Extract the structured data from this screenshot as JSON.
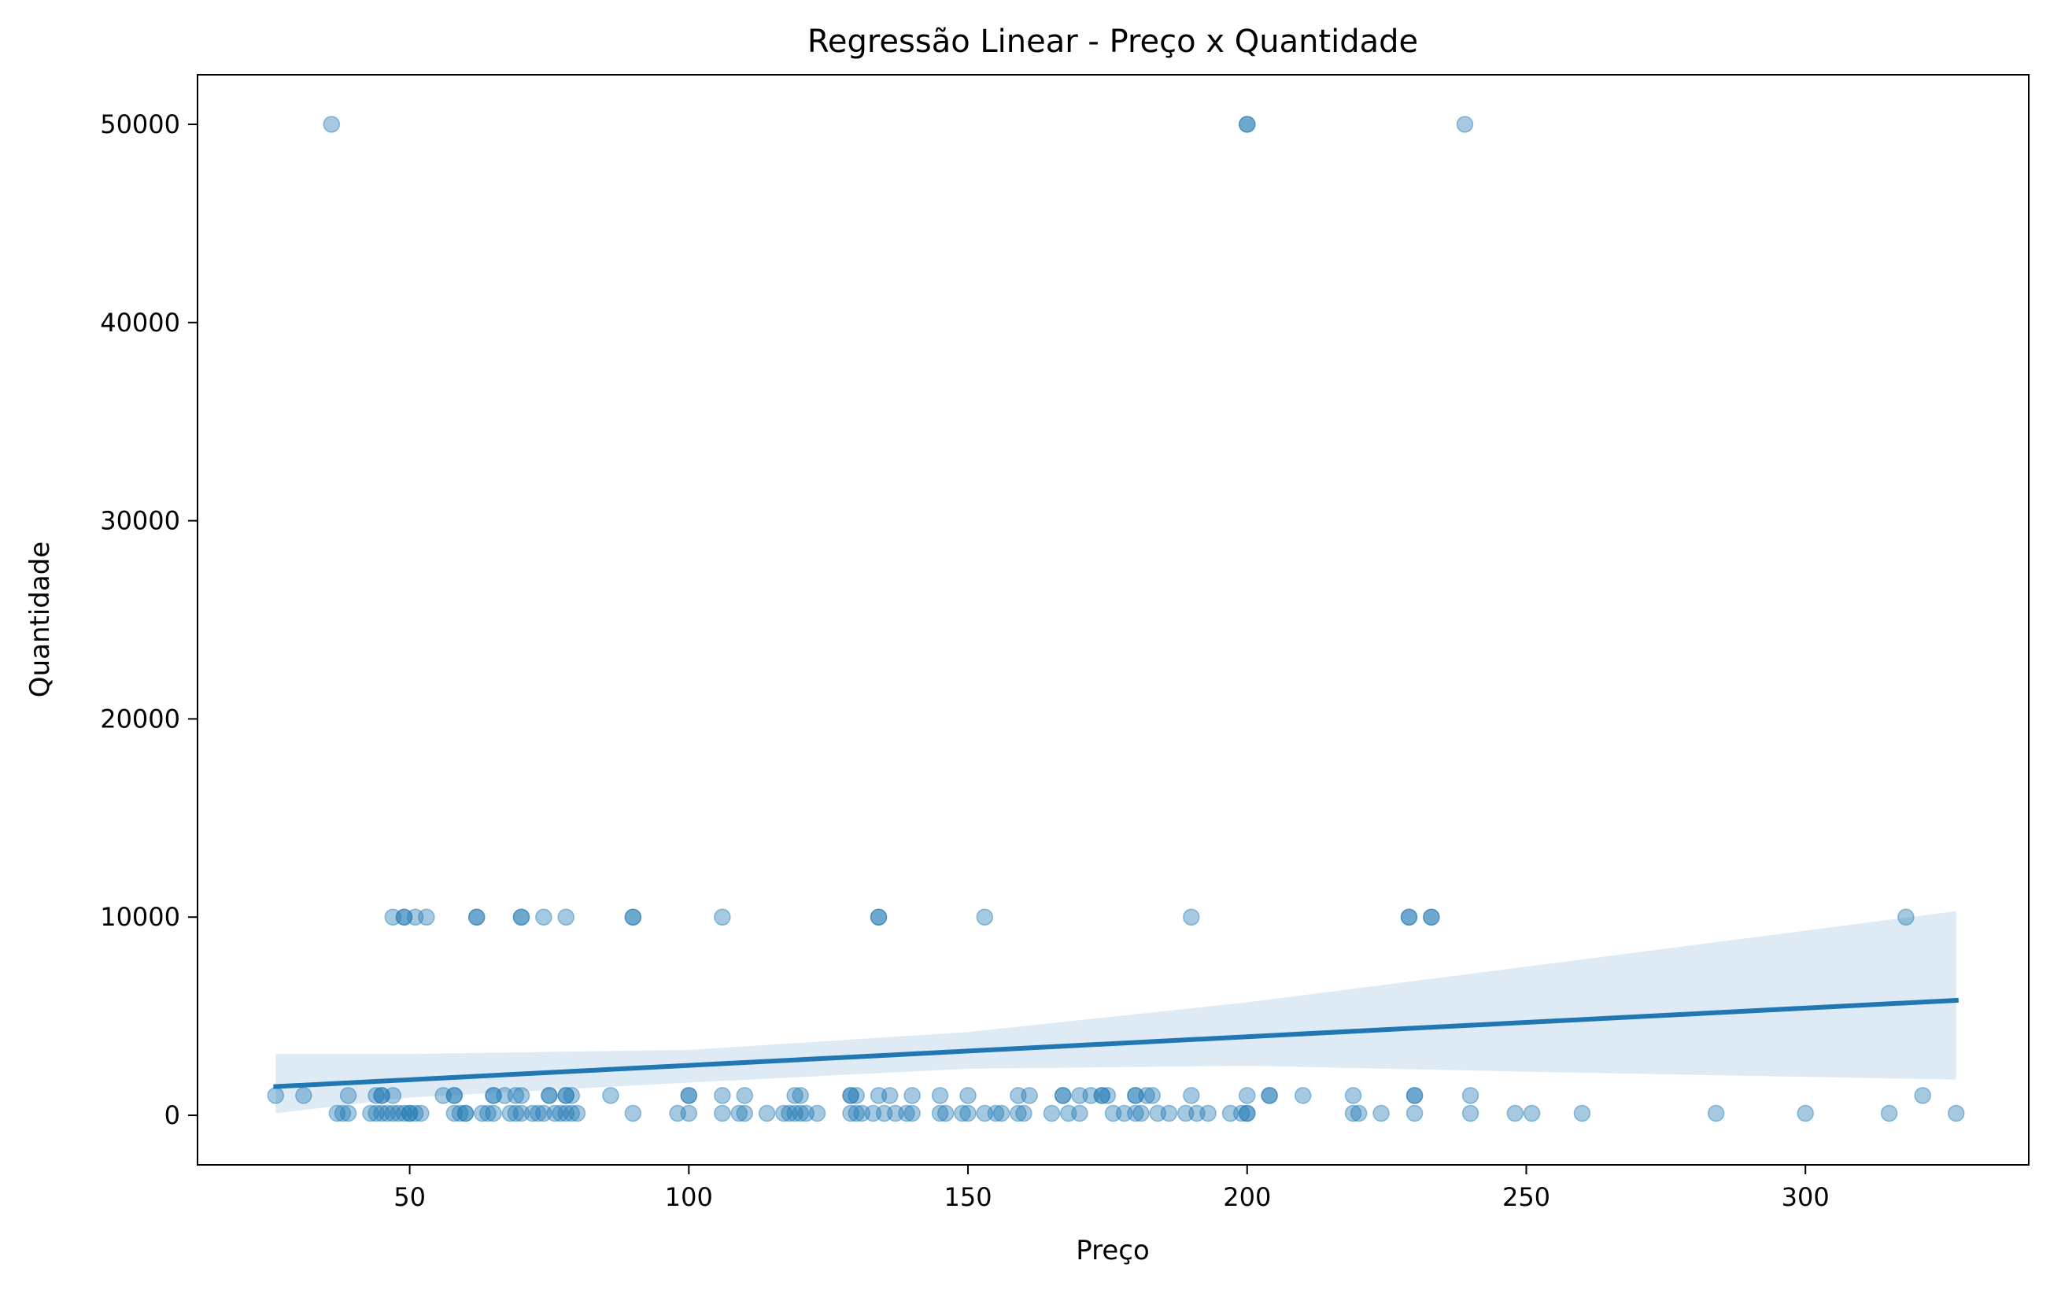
{
  "chart_data": {
    "type": "scatter",
    "title": "Regressão Linear - Preço x Quantidade",
    "xlabel": "Preço",
    "ylabel": "Quantidade",
    "xlim": [
      12,
      340
    ],
    "ylim": [
      -2500,
      52500
    ],
    "xticks": [
      50,
      100,
      150,
      200,
      250,
      300
    ],
    "yticks": [
      0,
      10000,
      20000,
      30000,
      40000,
      50000
    ],
    "grid": false,
    "colors": {
      "points": "#1f77b4",
      "line": "#1f77b4",
      "band": "#1f77b4"
    },
    "series": [
      {
        "points": [
          [
            36,
            50000
          ],
          [
            200,
            50000
          ],
          [
            200,
            50000
          ],
          [
            239,
            50000
          ],
          [
            47,
            10000
          ],
          [
            49,
            10000
          ],
          [
            49,
            10000
          ],
          [
            51,
            10000
          ],
          [
            53,
            10000
          ],
          [
            62,
            10000
          ],
          [
            62,
            10000
          ],
          [
            70,
            10000
          ],
          [
            70,
            10000
          ],
          [
            74,
            10000
          ],
          [
            78,
            10000
          ],
          [
            90,
            10000
          ],
          [
            90,
            10000
          ],
          [
            106,
            10000
          ],
          [
            134,
            10000
          ],
          [
            134,
            10000
          ],
          [
            153,
            10000
          ],
          [
            190,
            10000
          ],
          [
            229,
            10000
          ],
          [
            229,
            10000
          ],
          [
            233,
            10000
          ],
          [
            233,
            10000
          ],
          [
            318,
            10000
          ],
          [
            26,
            1000
          ],
          [
            31,
            1000
          ],
          [
            39,
            1000
          ],
          [
            44,
            1000
          ],
          [
            45,
            1000
          ],
          [
            45,
            1000
          ],
          [
            47,
            1000
          ],
          [
            56,
            1000
          ],
          [
            58,
            1000
          ],
          [
            58,
            1000
          ],
          [
            65,
            1000
          ],
          [
            65,
            1000
          ],
          [
            67,
            1000
          ],
          [
            69,
            1000
          ],
          [
            70,
            1000
          ],
          [
            75,
            1000
          ],
          [
            75,
            1000
          ],
          [
            78,
            1000
          ],
          [
            78,
            1000
          ],
          [
            79,
            1000
          ],
          [
            86,
            1000
          ],
          [
            100,
            1000
          ],
          [
            100,
            1000
          ],
          [
            106,
            1000
          ],
          [
            110,
            1000
          ],
          [
            119,
            1000
          ],
          [
            120,
            1000
          ],
          [
            129,
            1000
          ],
          [
            129,
            1000
          ],
          [
            130,
            1000
          ],
          [
            134,
            1000
          ],
          [
            136,
            1000
          ],
          [
            140,
            1000
          ],
          [
            145,
            1000
          ],
          [
            150,
            1000
          ],
          [
            159,
            1000
          ],
          [
            161,
            1000
          ],
          [
            167,
            1000
          ],
          [
            167,
            1000
          ],
          [
            170,
            1000
          ],
          [
            172,
            1000
          ],
          [
            174,
            1000
          ],
          [
            174,
            1000
          ],
          [
            175,
            1000
          ],
          [
            180,
            1000
          ],
          [
            180,
            1000
          ],
          [
            182,
            1000
          ],
          [
            183,
            1000
          ],
          [
            190,
            1000
          ],
          [
            200,
            1000
          ],
          [
            204,
            1000
          ],
          [
            204,
            1000
          ],
          [
            210,
            1000
          ],
          [
            219,
            1000
          ],
          [
            230,
            1000
          ],
          [
            230,
            1000
          ],
          [
            240,
            1000
          ],
          [
            321,
            1000
          ],
          [
            37,
            100
          ],
          [
            38,
            100
          ],
          [
            39,
            100
          ],
          [
            43,
            100
          ],
          [
            44,
            100
          ],
          [
            45,
            100
          ],
          [
            46,
            100
          ],
          [
            47,
            100
          ],
          [
            48,
            100
          ],
          [
            49,
            100
          ],
          [
            50,
            100
          ],
          [
            50,
            100
          ],
          [
            51,
            100
          ],
          [
            52,
            100
          ],
          [
            58,
            100
          ],
          [
            59,
            100
          ],
          [
            60,
            100
          ],
          [
            60,
            100
          ],
          [
            63,
            100
          ],
          [
            64,
            100
          ],
          [
            65,
            100
          ],
          [
            68,
            100
          ],
          [
            69,
            100
          ],
          [
            70,
            100
          ],
          [
            72,
            100
          ],
          [
            73,
            100
          ],
          [
            74,
            100
          ],
          [
            76,
            100
          ],
          [
            77,
            100
          ],
          [
            78,
            100
          ],
          [
            79,
            100
          ],
          [
            80,
            100
          ],
          [
            90,
            100
          ],
          [
            98,
            100
          ],
          [
            100,
            100
          ],
          [
            106,
            100
          ],
          [
            109,
            100
          ],
          [
            110,
            100
          ],
          [
            114,
            100
          ],
          [
            117,
            100
          ],
          [
            118,
            100
          ],
          [
            119,
            100
          ],
          [
            120,
            100
          ],
          [
            121,
            100
          ],
          [
            123,
            100
          ],
          [
            129,
            100
          ],
          [
            130,
            100
          ],
          [
            131,
            100
          ],
          [
            133,
            100
          ],
          [
            135,
            100
          ],
          [
            137,
            100
          ],
          [
            139,
            100
          ],
          [
            140,
            100
          ],
          [
            145,
            100
          ],
          [
            146,
            100
          ],
          [
            149,
            100
          ],
          [
            150,
            100
          ],
          [
            153,
            100
          ],
          [
            155,
            100
          ],
          [
            156,
            100
          ],
          [
            159,
            100
          ],
          [
            160,
            100
          ],
          [
            165,
            100
          ],
          [
            168,
            100
          ],
          [
            170,
            100
          ],
          [
            176,
            100
          ],
          [
            178,
            100
          ],
          [
            180,
            100
          ],
          [
            181,
            100
          ],
          [
            184,
            100
          ],
          [
            186,
            100
          ],
          [
            189,
            100
          ],
          [
            191,
            100
          ],
          [
            193,
            100
          ],
          [
            197,
            100
          ],
          [
            199,
            100
          ],
          [
            200,
            100
          ],
          [
            200,
            100
          ],
          [
            219,
            100
          ],
          [
            220,
            100
          ],
          [
            224,
            100
          ],
          [
            230,
            100
          ],
          [
            240,
            100
          ],
          [
            248,
            100
          ],
          [
            251,
            100
          ],
          [
            260,
            100
          ],
          [
            284,
            100
          ],
          [
            300,
            100
          ],
          [
            315,
            100
          ],
          [
            327,
            100
          ]
        ]
      }
    ],
    "regression": {
      "line": [
        [
          26,
          1450
        ],
        [
          327,
          5800
        ]
      ],
      "ci_upper": [
        [
          26,
          3100
        ],
        [
          50,
          3100
        ],
        [
          100,
          3300
        ],
        [
          150,
          4200
        ],
        [
          200,
          5700
        ],
        [
          250,
          7500
        ],
        [
          327,
          10300
        ]
      ],
      "ci_lower": [
        [
          26,
          100
        ],
        [
          50,
          900
        ],
        [
          100,
          1650
        ],
        [
          150,
          2350
        ],
        [
          200,
          2500
        ],
        [
          250,
          2200
        ],
        [
          327,
          1800
        ]
      ]
    }
  }
}
